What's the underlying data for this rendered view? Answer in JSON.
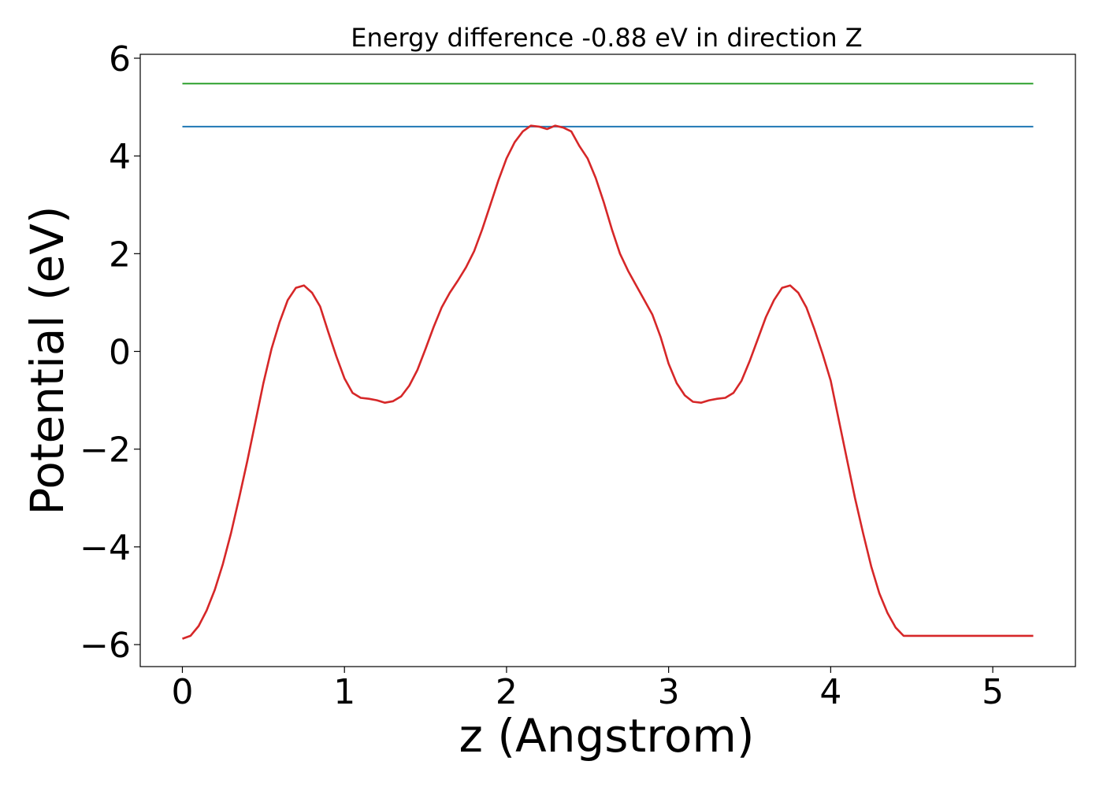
{
  "chart_data": {
    "type": "line",
    "title": "Energy difference -0.88 eV in direction Z",
    "xlabel": "z (Angstrom)",
    "ylabel": "Potential (eV)",
    "xlim": [
      -0.26,
      5.51
    ],
    "ylim": [
      -6.45,
      6.08
    ],
    "xticks": [
      0,
      1,
      2,
      3,
      4,
      5
    ],
    "xtick_labels": [
      "0",
      "1",
      "2",
      "3",
      "4",
      "5"
    ],
    "yticks": [
      -6,
      -4,
      -2,
      0,
      2,
      4,
      6
    ],
    "ytick_labels": [
      "−6",
      "−4",
      "−2",
      "0",
      "2",
      "4",
      "6"
    ],
    "grid": false,
    "series": [
      {
        "color": "#2ca02c",
        "x": [
          0,
          5.25
        ],
        "y": [
          5.48,
          5.48
        ]
      },
      {
        "color": "#1f77b4",
        "x": [
          0,
          5.25
        ],
        "y": [
          4.6,
          4.6
        ]
      },
      {
        "color": "#d62728",
        "x": [
          0,
          0.05,
          0.1,
          0.15,
          0.2,
          0.25,
          0.3,
          0.35,
          0.4,
          0.45,
          0.5,
          0.55,
          0.6,
          0.65,
          0.7,
          0.75,
          0.8,
          0.85,
          0.9,
          0.95,
          1.0,
          1.05,
          1.1,
          1.15,
          1.2,
          1.25,
          1.3,
          1.35,
          1.4,
          1.45,
          1.5,
          1.55,
          1.6,
          1.65,
          1.7,
          1.75,
          1.8,
          1.85,
          1.9,
          1.95,
          2.0,
          2.05,
          2.1,
          2.15,
          2.2,
          2.25,
          2.3,
          2.35,
          2.4,
          2.45,
          2.5,
          2.55,
          2.6,
          2.65,
          2.7,
          2.75,
          2.8,
          2.85,
          2.9,
          2.95,
          3.0,
          3.05,
          3.1,
          3.15,
          3.2,
          3.25,
          3.3,
          3.35,
          3.4,
          3.45,
          3.5,
          3.55,
          3.6,
          3.65,
          3.7,
          3.75,
          3.8,
          3.85,
          3.9,
          3.95,
          4.0,
          4.05,
          4.1,
          4.15,
          4.2,
          4.25,
          4.3,
          4.35,
          4.4,
          4.45,
          4.5,
          4.55,
          4.6,
          4.65,
          4.7,
          4.75,
          4.8,
          4.85,
          4.9,
          4.95,
          5.0,
          5.05,
          5.1,
          5.15,
          5.2,
          5.25
        ],
        "y": [
          -5.88,
          -5.82,
          -5.62,
          -5.3,
          -4.88,
          -4.35,
          -3.72,
          -3.0,
          -2.25,
          -1.45,
          -0.65,
          0.05,
          0.6,
          1.05,
          1.3,
          1.35,
          1.2,
          0.92,
          0.4,
          -0.1,
          -0.55,
          -0.85,
          -0.95,
          -0.97,
          -1.0,
          -1.05,
          -1.02,
          -0.92,
          -0.7,
          -0.38,
          0.05,
          0.5,
          0.9,
          1.2,
          1.45,
          1.72,
          2.05,
          2.5,
          3.0,
          3.5,
          3.95,
          4.28,
          4.5,
          4.62,
          4.6,
          4.55,
          4.62,
          4.58,
          4.5,
          4.2,
          3.95,
          3.55,
          3.05,
          2.5,
          2.0,
          1.65,
          1.35,
          1.05,
          0.75,
          0.3,
          -0.25,
          -0.65,
          -0.9,
          -1.03,
          -1.05,
          -1.0,
          -0.97,
          -0.95,
          -0.85,
          -0.6,
          -0.2,
          0.25,
          0.7,
          1.05,
          1.3,
          1.35,
          1.2,
          0.9,
          0.45,
          -0.05,
          -0.6,
          -1.4,
          -2.2,
          -3.0,
          -3.72,
          -4.4,
          -4.95,
          -5.35,
          -5.65,
          -5.82,
          -5.82,
          -5.82,
          -5.82,
          -5.82,
          -5.82,
          -5.82,
          -5.82,
          -5.82,
          -5.82,
          -5.82,
          -5.82,
          -5.82,
          -5.82,
          -5.82,
          -5.82,
          -5.82
        ]
      }
    ]
  }
}
